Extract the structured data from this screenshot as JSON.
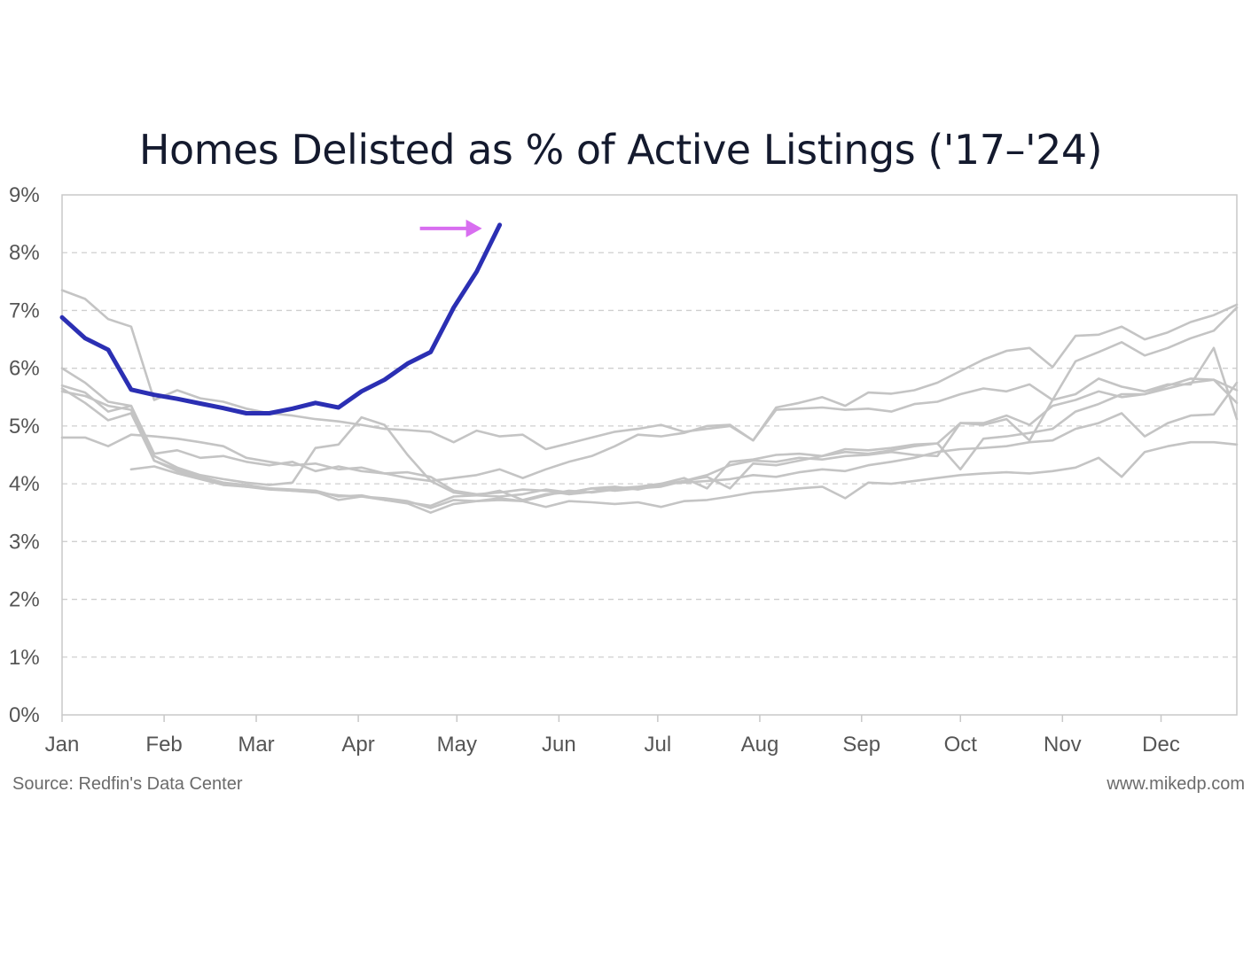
{
  "chart_data": {
    "type": "line",
    "title": "Homes Delisted as % of Active Listings ('17–'24)",
    "xlabel": "",
    "ylabel": "",
    "x_unit": "week of year",
    "x_tick_labels": [
      "Jan",
      "Feb",
      "Mar",
      "Apr",
      "May",
      "Jun",
      "Jul",
      "Aug",
      "Sep",
      "Oct",
      "Nov",
      "Dec"
    ],
    "x_tick_weeks": [
      1,
      5.43,
      9.43,
      13.86,
      18.14,
      22.57,
      26.86,
      31.29,
      35.71,
      40,
      44.43,
      48.71
    ],
    "xlim": [
      1,
      52
    ],
    "y_tick_labels": [
      "0%",
      "1%",
      "2%",
      "3%",
      "4%",
      "5%",
      "6%",
      "7%",
      "8%",
      "9%"
    ],
    "ylim": [
      0,
      9
    ],
    "grid": "horizontal dashed",
    "colors": {
      "highlight": "#2b2fb3",
      "background_series": "#c4c4c4",
      "arrow": "#d86ef0",
      "title": "#141a2e"
    },
    "highlight_series": {
      "values": [
        6.88,
        6.52,
        6.32,
        5.63,
        5.54,
        5.47,
        5.39,
        5.31,
        5.22,
        5.22,
        5.3,
        5.4,
        5.32,
        5.6,
        5.8,
        6.08,
        6.28,
        7.05,
        7.67,
        8.48
      ]
    },
    "background_series": [
      {
        "values": [
          7.35,
          7.2,
          6.85,
          6.72,
          5.45,
          5.62,
          5.48,
          5.42,
          5.3,
          5.22,
          5.18,
          5.12,
          5.08,
          5.02,
          4.95,
          4.93,
          4.9,
          4.72,
          4.92,
          4.82,
          4.85,
          4.6,
          4.7,
          4.8,
          4.9,
          4.95,
          5.02,
          4.9,
          4.95,
          5.0,
          4.75,
          5.32,
          5.4,
          5.5,
          5.35,
          5.58,
          5.56,
          5.62,
          5.75,
          5.95,
          6.15,
          6.3,
          6.35,
          6.02,
          6.56,
          6.58,
          6.72,
          6.5,
          6.62,
          6.8,
          6.92,
          7.1
        ]
      },
      {
        "values": [
          6.0,
          5.75,
          5.42,
          5.35,
          4.52,
          4.58,
          4.45,
          4.48,
          4.38,
          4.32,
          4.38,
          4.22,
          4.3,
          4.22,
          4.18,
          4.1,
          4.05,
          4.1,
          4.15,
          4.25,
          4.1,
          4.25,
          4.38,
          4.48,
          4.65,
          4.85,
          4.82,
          4.88,
          5.0,
          5.02,
          4.75,
          5.28,
          5.3,
          5.32,
          5.28,
          5.3,
          5.25,
          5.38,
          5.42,
          5.55,
          5.65,
          5.6,
          5.72,
          5.45,
          6.12,
          6.28,
          6.45,
          6.22,
          6.35,
          6.52,
          6.65,
          7.05
        ]
      },
      {
        "values": [
          5.7,
          5.58,
          5.25,
          5.35,
          4.48,
          4.28,
          4.15,
          4.08,
          4.02,
          3.98,
          4.02,
          4.62,
          4.68,
          5.15,
          5.02,
          4.5,
          4.05,
          3.85,
          3.8,
          3.78,
          3.82,
          3.9,
          3.85,
          3.92,
          3.95,
          3.9,
          3.98,
          4.05,
          4.12,
          3.92,
          4.35,
          4.32,
          4.4,
          4.48,
          4.55,
          4.52,
          4.58,
          4.65,
          4.7,
          4.25,
          4.78,
          4.82,
          4.88,
          4.95,
          5.25,
          5.38,
          5.55,
          5.55,
          5.7,
          5.82,
          5.8,
          5.62
        ]
      },
      {
        "values": [
          4.8,
          4.8,
          4.65,
          4.85,
          4.82,
          4.78,
          4.72,
          4.65,
          4.45,
          4.38,
          4.32,
          4.35,
          4.25,
          4.28,
          4.18,
          4.2,
          4.12,
          3.88,
          3.82,
          3.85,
          3.9,
          3.88,
          3.82,
          3.86,
          3.92,
          3.95,
          4.0,
          4.02,
          4.05,
          4.08,
          4.15,
          4.12,
          4.2,
          4.25,
          4.22,
          4.32,
          4.38,
          4.45,
          4.55,
          4.6,
          4.62,
          4.65,
          4.72,
          4.75,
          4.95,
          5.05,
          5.22,
          4.82,
          5.05,
          5.18,
          5.2,
          5.75
        ]
      },
      {
        "values": null,
        "segments": [
          {
            "start_week": 4,
            "values": [
              4.25,
              4.3,
              4.18,
              4.08,
              3.98,
              3.95,
              3.92,
              3.88,
              3.86,
              3.72,
              3.78,
              3.72,
              3.66,
              3.5,
              3.65,
              3.7,
              3.72,
              3.7,
              3.6,
              3.7,
              3.68,
              3.65,
              3.68,
              3.6,
              3.7,
              3.72,
              3.78,
              3.85,
              3.88,
              3.92,
              3.95,
              3.75,
              4.02,
              4.0,
              4.05,
              4.1,
              4.15,
              4.18,
              4.2,
              4.18,
              4.22,
              4.28,
              4.45,
              4.12,
              4.55,
              4.65,
              4.72,
              4.72,
              4.68
            ]
          }
        ]
      },
      {
        "values": [
          5.65,
          5.4,
          5.1,
          5.22,
          4.4,
          4.25,
          4.12,
          4.02,
          3.98,
          3.92,
          3.9,
          3.88,
          3.78,
          3.8,
          3.72,
          3.68,
          3.62,
          3.78,
          3.8,
          3.88,
          3.72,
          3.82,
          3.85,
          3.92,
          3.88,
          3.92,
          4.0,
          4.1,
          3.92,
          4.38,
          4.42,
          4.5,
          4.52,
          4.48,
          4.6,
          4.58,
          4.62,
          4.68,
          4.7,
          5.05,
          5.02,
          5.12,
          4.75,
          5.45,
          5.55,
          5.82,
          5.68,
          5.6,
          5.72,
          5.72,
          6.35,
          5.12
        ]
      },
      {
        "values": [
          5.6,
          5.52,
          5.35,
          5.28,
          4.4,
          4.22,
          4.1,
          4.0,
          3.95,
          3.9,
          3.88,
          3.85,
          3.8,
          3.78,
          3.75,
          3.7,
          3.58,
          3.72,
          3.7,
          3.75,
          3.7,
          3.8,
          3.88,
          3.85,
          3.9,
          3.92,
          3.95,
          4.05,
          4.15,
          4.32,
          4.4,
          4.38,
          4.45,
          4.42,
          4.48,
          4.5,
          4.55,
          4.5,
          4.48,
          5.05,
          5.05,
          5.18,
          5.02,
          5.35,
          5.45,
          5.6,
          5.5,
          5.55,
          5.65,
          5.75,
          5.8,
          5.4
        ]
      }
    ]
  },
  "footer": {
    "source": "Source: Redfin's Data Center",
    "site": "www.mikedp.com"
  }
}
